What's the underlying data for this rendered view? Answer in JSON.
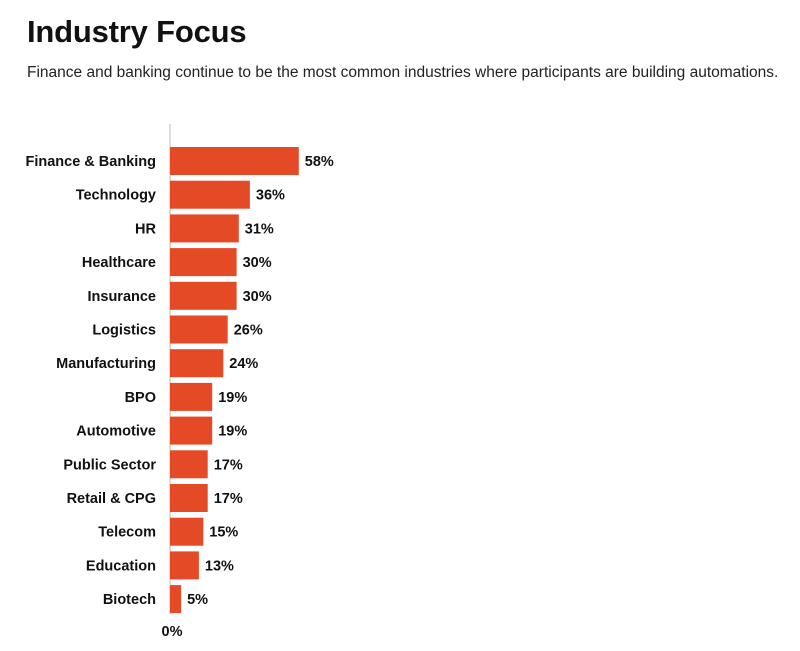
{
  "header": {
    "title": "Industry Focus",
    "subtitle": "Finance and banking continue to be the most common industries where participants are building automations."
  },
  "colors": {
    "bar": "#E44A26",
    "axis": "#bbbbbb"
  },
  "chart_data": {
    "type": "bar",
    "orientation": "horizontal",
    "title": "Industry Focus",
    "categories": [
      "Finance & Banking",
      "Technology",
      "HR",
      "Healthcare",
      "Insurance",
      "Logistics",
      "Manufacturing",
      "BPO",
      "Automotive",
      "Public Sector",
      "Retail & CPG",
      "Telecom",
      "Education",
      "Biotech"
    ],
    "values": [
      58,
      36,
      31,
      30,
      30,
      26,
      24,
      19,
      19,
      17,
      17,
      15,
      13,
      5
    ],
    "value_labels": [
      "58%",
      "36%",
      "31%",
      "30%",
      "30%",
      "26%",
      "24%",
      "19%",
      "19%",
      "17%",
      "17%",
      "15%",
      "13%",
      "5%"
    ],
    "unit": "%",
    "x_tick_labels": [
      "0%"
    ],
    "xlim": [
      0,
      100
    ],
    "grid": false,
    "legend": "none"
  }
}
